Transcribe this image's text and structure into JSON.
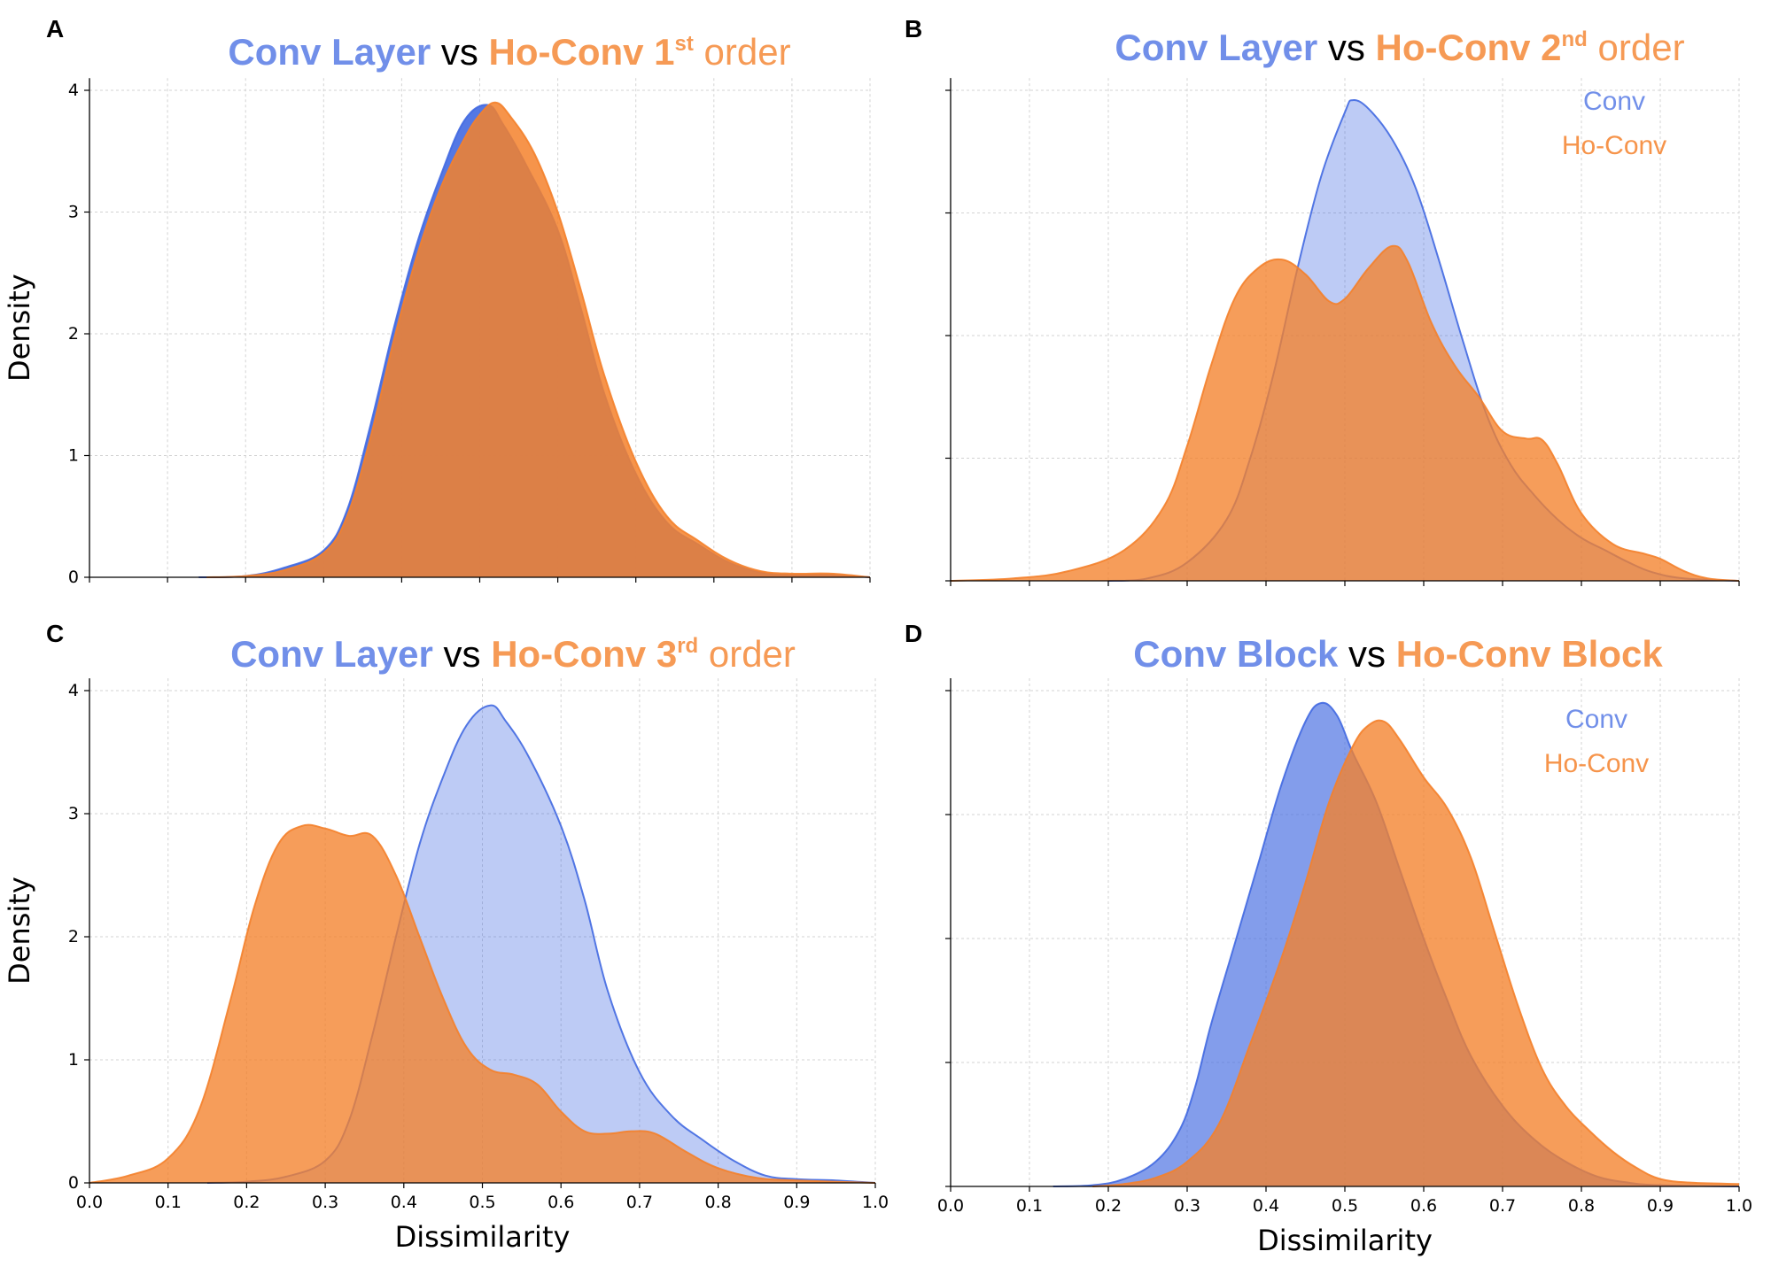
{
  "colors": {
    "conv": "#4169e1",
    "hoconv": "#f4812b",
    "vs": "#000000"
  },
  "shared_labels": {
    "xlabel": "Dissimilarity",
    "ylabel": "Density"
  },
  "chart_data": [
    {
      "type": "area",
      "panel": "A",
      "title": {
        "left": "Conv Layer",
        "vs": "vs",
        "right_bold": "Ho-Conv 1",
        "sup": "st",
        "right_rest": "order"
      },
      "xlim": [
        0,
        1
      ],
      "ylim": [
        0,
        4.1
      ],
      "xticks": [
        "0.0",
        "0.1",
        "0.2",
        "0.3",
        "0.4",
        "0.5",
        "0.6",
        "0.7",
        "0.8",
        "0.9",
        "1.0"
      ],
      "yticks": [
        "0",
        "1",
        "2",
        "3",
        "4"
      ],
      "show_xticklabels": false,
      "show_ylabel": true,
      "show_xlabel": false,
      "show_yticklabels": true,
      "legend": null,
      "grid": true,
      "series": [
        {
          "name": "Conv",
          "fill_opacity": 0.9,
          "points": [
            [
              0.14,
              0
            ],
            [
              0.2,
              0.01
            ],
            [
              0.25,
              0.08
            ],
            [
              0.3,
              0.22
            ],
            [
              0.33,
              0.55
            ],
            [
              0.36,
              1.25
            ],
            [
              0.39,
              2.05
            ],
            [
              0.42,
              2.75
            ],
            [
              0.45,
              3.3
            ],
            [
              0.48,
              3.75
            ],
            [
              0.51,
              3.88
            ],
            [
              0.53,
              3.72
            ],
            [
              0.56,
              3.38
            ],
            [
              0.6,
              2.85
            ],
            [
              0.63,
              2.2
            ],
            [
              0.66,
              1.5
            ],
            [
              0.7,
              0.85
            ],
            [
              0.74,
              0.45
            ],
            [
              0.78,
              0.27
            ],
            [
              0.82,
              0.12
            ],
            [
              0.86,
              0.04
            ],
            [
              0.9,
              0.02
            ],
            [
              0.95,
              0.02
            ],
            [
              1.0,
              0
            ]
          ]
        },
        {
          "name": "Ho-Conv",
          "fill_opacity": 0.85,
          "points": [
            [
              0.15,
              0
            ],
            [
              0.2,
              0.01
            ],
            [
              0.25,
              0.06
            ],
            [
              0.3,
              0.2
            ],
            [
              0.33,
              0.5
            ],
            [
              0.36,
              1.15
            ],
            [
              0.39,
              1.95
            ],
            [
              0.42,
              2.65
            ],
            [
              0.45,
              3.2
            ],
            [
              0.48,
              3.6
            ],
            [
              0.5,
              3.8
            ],
            [
              0.52,
              3.9
            ],
            [
              0.54,
              3.78
            ],
            [
              0.57,
              3.48
            ],
            [
              0.6,
              3.0
            ],
            [
              0.63,
              2.35
            ],
            [
              0.66,
              1.65
            ],
            [
              0.7,
              0.95
            ],
            [
              0.74,
              0.5
            ],
            [
              0.78,
              0.3
            ],
            [
              0.82,
              0.14
            ],
            [
              0.86,
              0.05
            ],
            [
              0.9,
              0.03
            ],
            [
              0.95,
              0.03
            ],
            [
              1.0,
              0
            ]
          ]
        }
      ]
    },
    {
      "type": "area",
      "panel": "B",
      "title": {
        "left": "Conv Layer",
        "vs": "vs",
        "right_bold": "Ho-Conv 2",
        "sup": "nd",
        "right_rest": "order"
      },
      "xlim": [
        0,
        1
      ],
      "ylim": [
        0,
        4.1
      ],
      "xticks": [
        "0.0",
        "0.1",
        "0.2",
        "0.3",
        "0.4",
        "0.5",
        "0.6",
        "0.7",
        "0.8",
        "0.9",
        "1.0"
      ],
      "yticks": [
        "0",
        "1",
        "2",
        "3",
        "4"
      ],
      "show_xticklabels": false,
      "show_ylabel": false,
      "show_xlabel": false,
      "show_yticklabels": false,
      "legend": [
        "Conv",
        "Ho-Conv"
      ],
      "grid": true,
      "series": [
        {
          "name": "Conv",
          "fill_opacity": 0.35,
          "points": [
            [
              0.2,
              0
            ],
            [
              0.25,
              0.02
            ],
            [
              0.3,
              0.15
            ],
            [
              0.35,
              0.5
            ],
            [
              0.38,
              1.0
            ],
            [
              0.41,
              1.7
            ],
            [
              0.44,
              2.55
            ],
            [
              0.47,
              3.3
            ],
            [
              0.5,
              3.82
            ],
            [
              0.51,
              3.92
            ],
            [
              0.53,
              3.85
            ],
            [
              0.56,
              3.6
            ],
            [
              0.59,
              3.2
            ],
            [
              0.62,
              2.6
            ],
            [
              0.65,
              1.95
            ],
            [
              0.68,
              1.35
            ],
            [
              0.71,
              0.95
            ],
            [
              0.74,
              0.7
            ],
            [
              0.77,
              0.5
            ],
            [
              0.8,
              0.35
            ],
            [
              0.83,
              0.25
            ],
            [
              0.86,
              0.15
            ],
            [
              0.89,
              0.07
            ],
            [
              0.93,
              0.02
            ],
            [
              1.0,
              0
            ]
          ]
        },
        {
          "name": "Ho-Conv",
          "fill_opacity": 0.78,
          "points": [
            [
              0.0,
              0
            ],
            [
              0.08,
              0.02
            ],
            [
              0.15,
              0.08
            ],
            [
              0.22,
              0.25
            ],
            [
              0.27,
              0.6
            ],
            [
              0.3,
              1.1
            ],
            [
              0.33,
              1.75
            ],
            [
              0.36,
              2.3
            ],
            [
              0.39,
              2.55
            ],
            [
              0.42,
              2.62
            ],
            [
              0.45,
              2.5
            ],
            [
              0.48,
              2.28
            ],
            [
              0.5,
              2.3
            ],
            [
              0.53,
              2.55
            ],
            [
              0.56,
              2.73
            ],
            [
              0.58,
              2.6
            ],
            [
              0.61,
              2.1
            ],
            [
              0.64,
              1.75
            ],
            [
              0.67,
              1.5
            ],
            [
              0.7,
              1.22
            ],
            [
              0.73,
              1.16
            ],
            [
              0.75,
              1.15
            ],
            [
              0.77,
              0.95
            ],
            [
              0.8,
              0.55
            ],
            [
              0.84,
              0.3
            ],
            [
              0.88,
              0.22
            ],
            [
              0.9,
              0.18
            ],
            [
              0.93,
              0.08
            ],
            [
              0.96,
              0.02
            ],
            [
              1.0,
              0
            ]
          ]
        }
      ]
    },
    {
      "type": "area",
      "panel": "C",
      "title": {
        "left": "Conv Layer",
        "vs": "vs",
        "right_bold": "Ho-Conv 3",
        "sup": "rd",
        "right_rest": "order"
      },
      "xlim": [
        0,
        1
      ],
      "ylim": [
        0,
        4.1
      ],
      "xticks": [
        "0.0",
        "0.1",
        "0.2",
        "0.3",
        "0.4",
        "0.5",
        "0.6",
        "0.7",
        "0.8",
        "0.9",
        "1.0"
      ],
      "yticks": [
        "0",
        "1",
        "2",
        "3",
        "4"
      ],
      "show_xticklabels": true,
      "show_ylabel": true,
      "show_xlabel": true,
      "show_yticklabels": true,
      "legend": null,
      "grid": true,
      "series": [
        {
          "name": "Conv",
          "fill_opacity": 0.35,
          "points": [
            [
              0.15,
              0
            ],
            [
              0.2,
              0.01
            ],
            [
              0.25,
              0.05
            ],
            [
              0.3,
              0.18
            ],
            [
              0.33,
              0.5
            ],
            [
              0.36,
              1.2
            ],
            [
              0.39,
              2.0
            ],
            [
              0.42,
              2.75
            ],
            [
              0.45,
              3.3
            ],
            [
              0.48,
              3.72
            ],
            [
              0.51,
              3.88
            ],
            [
              0.53,
              3.75
            ],
            [
              0.56,
              3.45
            ],
            [
              0.6,
              2.9
            ],
            [
              0.63,
              2.3
            ],
            [
              0.66,
              1.55
            ],
            [
              0.7,
              0.9
            ],
            [
              0.74,
              0.55
            ],
            [
              0.78,
              0.35
            ],
            [
              0.82,
              0.18
            ],
            [
              0.86,
              0.06
            ],
            [
              0.9,
              0.03
            ],
            [
              0.95,
              0.02
            ],
            [
              1.0,
              0
            ]
          ]
        },
        {
          "name": "Ho-Conv",
          "fill_opacity": 0.78,
          "points": [
            [
              0.0,
              0
            ],
            [
              0.05,
              0.06
            ],
            [
              0.1,
              0.2
            ],
            [
              0.14,
              0.6
            ],
            [
              0.18,
              1.5
            ],
            [
              0.21,
              2.25
            ],
            [
              0.24,
              2.75
            ],
            [
              0.27,
              2.9
            ],
            [
              0.3,
              2.88
            ],
            [
              0.33,
              2.82
            ],
            [
              0.36,
              2.82
            ],
            [
              0.39,
              2.5
            ],
            [
              0.42,
              2.0
            ],
            [
              0.45,
              1.5
            ],
            [
              0.48,
              1.1
            ],
            [
              0.51,
              0.92
            ],
            [
              0.54,
              0.88
            ],
            [
              0.57,
              0.8
            ],
            [
              0.6,
              0.58
            ],
            [
              0.63,
              0.42
            ],
            [
              0.66,
              0.4
            ],
            [
              0.69,
              0.42
            ],
            [
              0.72,
              0.4
            ],
            [
              0.76,
              0.25
            ],
            [
              0.8,
              0.12
            ],
            [
              0.85,
              0.04
            ],
            [
              0.9,
              0.02
            ],
            [
              1.0,
              0
            ]
          ]
        }
      ]
    },
    {
      "type": "area",
      "panel": "D",
      "title": {
        "left": "Conv Block",
        "vs": "vs",
        "right_bold": "Ho-Conv Block",
        "sup": "",
        "right_rest": ""
      },
      "xlim": [
        0,
        1
      ],
      "ylim": [
        0,
        4.1
      ],
      "xticks": [
        "0.0",
        "0.1",
        "0.2",
        "0.3",
        "0.4",
        "0.5",
        "0.6",
        "0.7",
        "0.8",
        "0.9",
        "1.0"
      ],
      "yticks": [
        "0",
        "1",
        "2",
        "3",
        "4"
      ],
      "show_xticklabels": true,
      "show_ylabel": false,
      "show_xlabel": true,
      "show_yticklabels": false,
      "legend": [
        "Conv",
        "Ho-Conv"
      ],
      "grid": true,
      "series": [
        {
          "name": "Conv",
          "fill_opacity": 0.65,
          "points": [
            [
              0.13,
              0
            ],
            [
              0.18,
              0.01
            ],
            [
              0.22,
              0.06
            ],
            [
              0.26,
              0.2
            ],
            [
              0.29,
              0.45
            ],
            [
              0.31,
              0.8
            ],
            [
              0.33,
              1.3
            ],
            [
              0.36,
              1.95
            ],
            [
              0.39,
              2.6
            ],
            [
              0.42,
              3.25
            ],
            [
              0.45,
              3.75
            ],
            [
              0.47,
              3.9
            ],
            [
              0.49,
              3.8
            ],
            [
              0.51,
              3.5
            ],
            [
              0.54,
              3.1
            ],
            [
              0.57,
              2.55
            ],
            [
              0.6,
              2.0
            ],
            [
              0.63,
              1.5
            ],
            [
              0.66,
              1.05
            ],
            [
              0.7,
              0.65
            ],
            [
              0.74,
              0.38
            ],
            [
              0.78,
              0.2
            ],
            [
              0.82,
              0.08
            ],
            [
              0.86,
              0.03
            ],
            [
              0.9,
              0.01
            ],
            [
              1.0,
              0
            ]
          ]
        },
        {
          "name": "Ho-Conv",
          "fill_opacity": 0.78,
          "points": [
            [
              0.18,
              0
            ],
            [
              0.22,
              0.02
            ],
            [
              0.26,
              0.07
            ],
            [
              0.3,
              0.2
            ],
            [
              0.34,
              0.5
            ],
            [
              0.38,
              1.15
            ],
            [
              0.42,
              1.85
            ],
            [
              0.45,
              2.45
            ],
            [
              0.48,
              3.1
            ],
            [
              0.51,
              3.55
            ],
            [
              0.53,
              3.72
            ],
            [
              0.55,
              3.75
            ],
            [
              0.57,
              3.6
            ],
            [
              0.6,
              3.3
            ],
            [
              0.63,
              3.05
            ],
            [
              0.66,
              2.65
            ],
            [
              0.69,
              2.05
            ],
            [
              0.72,
              1.45
            ],
            [
              0.75,
              0.95
            ],
            [
              0.78,
              0.65
            ],
            [
              0.81,
              0.45
            ],
            [
              0.84,
              0.28
            ],
            [
              0.87,
              0.15
            ],
            [
              0.9,
              0.06
            ],
            [
              0.94,
              0.03
            ],
            [
              1.0,
              0.02
            ]
          ]
        }
      ]
    }
  ]
}
